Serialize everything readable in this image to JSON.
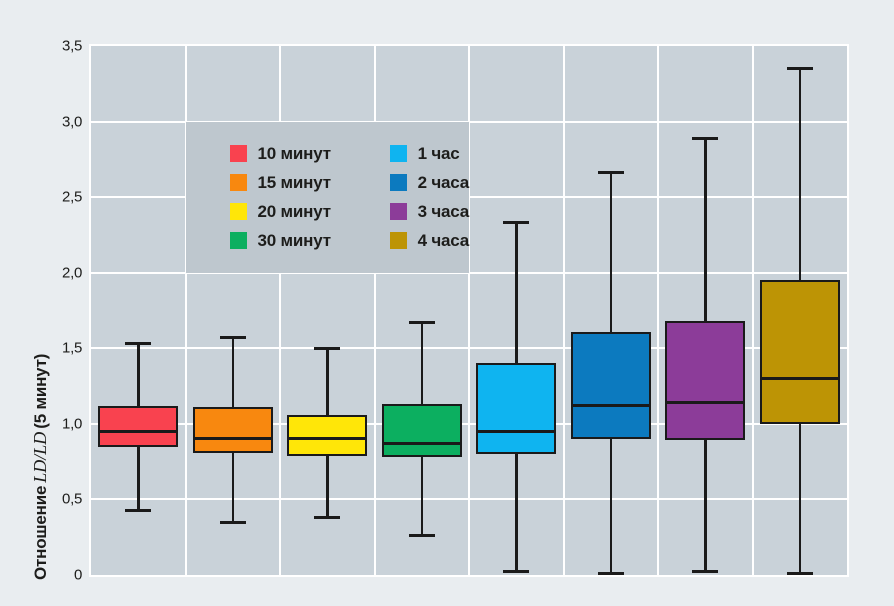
{
  "chart_data": {
    "type": "boxplot",
    "title": "",
    "ylabel": "Отношение LD/LD (5 минут)",
    "ylabel_parts": {
      "prefix": "Отношение",
      "math": "LD/LD",
      "suffix": "(5 минут)"
    },
    "xlabel": "",
    "ylim": [
      0,
      3.5
    ],
    "yticks": [
      "0",
      "0,5",
      "1,0",
      "1,5",
      "2,0",
      "2,5",
      "3,0",
      "3,5"
    ],
    "ytick_values": [
      0,
      0.5,
      1.0,
      1.5,
      2.0,
      2.5,
      3.0,
      3.5
    ],
    "grid": true,
    "legend_position": "upper-left-inside",
    "colors": {
      "page_background": "#e9edf0",
      "plot_background": "#c9d2d9",
      "legend_background": "#bec7ce",
      "gridline": "#ffffff",
      "stroke": "#1a1a1a"
    },
    "series": [
      {
        "name": "10 минут",
        "color": "#f9424f",
        "whisker_low": 0.43,
        "q1": 0.85,
        "median": 0.95,
        "q3": 1.12,
        "whisker_high": 1.53
      },
      {
        "name": "15 минут",
        "color": "#f8880f",
        "whisker_low": 0.35,
        "q1": 0.81,
        "median": 0.9,
        "q3": 1.11,
        "whisker_high": 1.57
      },
      {
        "name": "20 минут",
        "color": "#ffe608",
        "whisker_low": 0.38,
        "q1": 0.79,
        "median": 0.9,
        "q3": 1.06,
        "whisker_high": 1.5
      },
      {
        "name": "30 минут",
        "color": "#0caf60",
        "whisker_low": 0.26,
        "q1": 0.78,
        "median": 0.87,
        "q3": 1.13,
        "whisker_high": 1.67
      },
      {
        "name": "1 час",
        "color": "#0fb4f0",
        "whisker_low": 0.02,
        "q1": 0.8,
        "median": 0.95,
        "q3": 1.4,
        "whisker_high": 2.33
      },
      {
        "name": "2 часа",
        "color": "#0c7abf",
        "whisker_low": 0.01,
        "q1": 0.9,
        "median": 1.12,
        "q3": 1.61,
        "whisker_high": 2.66
      },
      {
        "name": "3 часа",
        "color": "#8c3c99",
        "whisker_low": 0.02,
        "q1": 0.89,
        "median": 1.14,
        "q3": 1.68,
        "whisker_high": 2.89
      },
      {
        "name": "4 часа",
        "color": "#bd9405",
        "whisker_low": 0.01,
        "q1": 1.0,
        "median": 1.3,
        "q3": 1.95,
        "whisker_high": 3.35
      }
    ]
  }
}
